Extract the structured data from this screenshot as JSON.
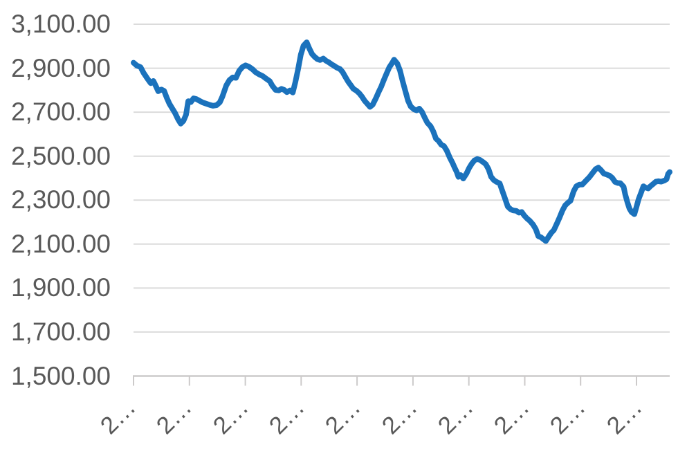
{
  "chart_data": {
    "type": "line",
    "title": "",
    "legend": false,
    "grid": true,
    "y_axis": {
      "range": [
        1500,
        3100
      ],
      "ticks": [
        1500,
        1700,
        1900,
        2100,
        2300,
        2500,
        2700,
        2900,
        3100
      ],
      "tick_labels": [
        "1,500.00",
        "1,700.00",
        "1,900.00",
        "2,100.00",
        "2,300.00",
        "2,500.00",
        "2,700.00",
        "2,900.00",
        "3,100.00"
      ]
    },
    "x_axis": {
      "tick_labels": [
        "2…",
        "2…",
        "2…",
        "2…",
        "2…",
        "2…",
        "2…",
        "2…",
        "2…",
        "2…"
      ],
      "labels_rotated_degrees": -45
    },
    "series": [
      {
        "name": "",
        "color": "#1B72BC",
        "points": [
          [
            0,
            2925
          ],
          [
            0.006,
            2912
          ],
          [
            0.013,
            2905
          ],
          [
            0.019,
            2878
          ],
          [
            0.026,
            2852
          ],
          [
            0.032,
            2832
          ],
          [
            0.037,
            2842
          ],
          [
            0.043,
            2812
          ],
          [
            0.046,
            2795
          ],
          [
            0.052,
            2803
          ],
          [
            0.057,
            2797
          ],
          [
            0.062,
            2765
          ],
          [
            0.067,
            2738
          ],
          [
            0.072,
            2718
          ],
          [
            0.077,
            2698
          ],
          [
            0.083,
            2668
          ],
          [
            0.088,
            2648
          ],
          [
            0.093,
            2660
          ],
          [
            0.098,
            2688
          ],
          [
            0.102,
            2750
          ],
          [
            0.107,
            2746
          ],
          [
            0.112,
            2763
          ],
          [
            0.117,
            2760
          ],
          [
            0.123,
            2752
          ],
          [
            0.129,
            2744
          ],
          [
            0.135,
            2739
          ],
          [
            0.142,
            2733
          ],
          [
            0.148,
            2729
          ],
          [
            0.155,
            2732
          ],
          [
            0.161,
            2745
          ],
          [
            0.166,
            2772
          ],
          [
            0.173,
            2822
          ],
          [
            0.179,
            2846
          ],
          [
            0.185,
            2858
          ],
          [
            0.191,
            2856
          ],
          [
            0.197,
            2888
          ],
          [
            0.203,
            2905
          ],
          [
            0.209,
            2913
          ],
          [
            0.215,
            2907
          ],
          [
            0.222,
            2895
          ],
          [
            0.228,
            2881
          ],
          [
            0.235,
            2871
          ],
          [
            0.241,
            2864
          ],
          [
            0.248,
            2851
          ],
          [
            0.254,
            2841
          ],
          [
            0.259,
            2820
          ],
          [
            0.265,
            2801
          ],
          [
            0.271,
            2799
          ],
          [
            0.276,
            2806
          ],
          [
            0.281,
            2801
          ],
          [
            0.286,
            2791
          ],
          [
            0.292,
            2799
          ],
          [
            0.297,
            2789
          ],
          [
            0.302,
            2838
          ],
          [
            0.307,
            2896
          ],
          [
            0.312,
            2962
          ],
          [
            0.317,
            3002
          ],
          [
            0.323,
            3018
          ],
          [
            0.328,
            2989
          ],
          [
            0.333,
            2964
          ],
          [
            0.338,
            2951
          ],
          [
            0.343,
            2941
          ],
          [
            0.348,
            2937
          ],
          [
            0.354,
            2944
          ],
          [
            0.359,
            2934
          ],
          [
            0.364,
            2927
          ],
          [
            0.369,
            2918
          ],
          [
            0.374,
            2911
          ],
          [
            0.379,
            2903
          ],
          [
            0.385,
            2896
          ],
          [
            0.39,
            2882
          ],
          [
            0.395,
            2861
          ],
          [
            0.4,
            2840
          ],
          [
            0.405,
            2823
          ],
          [
            0.41,
            2806
          ],
          [
            0.416,
            2797
          ],
          [
            0.421,
            2786
          ],
          [
            0.426,
            2771
          ],
          [
            0.431,
            2752
          ],
          [
            0.436,
            2738
          ],
          [
            0.441,
            2724
          ],
          [
            0.446,
            2734
          ],
          [
            0.452,
            2763
          ],
          [
            0.457,
            2791
          ],
          [
            0.462,
            2816
          ],
          [
            0.467,
            2847
          ],
          [
            0.472,
            2876
          ],
          [
            0.477,
            2904
          ],
          [
            0.483,
            2926
          ],
          [
            0.486,
            2939
          ],
          [
            0.492,
            2921
          ],
          [
            0.497,
            2889
          ],
          [
            0.502,
            2841
          ],
          [
            0.507,
            2796
          ],
          [
            0.512,
            2752
          ],
          [
            0.517,
            2726
          ],
          [
            0.523,
            2713
          ],
          [
            0.528,
            2708
          ],
          [
            0.533,
            2716
          ],
          [
            0.538,
            2701
          ],
          [
            0.543,
            2676
          ],
          [
            0.548,
            2652
          ],
          [
            0.554,
            2636
          ],
          [
            0.559,
            2613
          ],
          [
            0.564,
            2580
          ],
          [
            0.569,
            2569
          ],
          [
            0.574,
            2552
          ],
          [
            0.579,
            2546
          ],
          [
            0.584,
            2526
          ],
          [
            0.59,
            2492
          ],
          [
            0.595,
            2469
          ],
          [
            0.599,
            2447
          ],
          [
            0.603,
            2427
          ],
          [
            0.606,
            2406
          ],
          [
            0.61,
            2414
          ],
          [
            0.615,
            2398
          ],
          [
            0.621,
            2421
          ],
          [
            0.626,
            2446
          ],
          [
            0.631,
            2466
          ],
          [
            0.636,
            2481
          ],
          [
            0.641,
            2487
          ],
          [
            0.646,
            2483
          ],
          [
            0.652,
            2473
          ],
          [
            0.657,
            2463
          ],
          [
            0.662,
            2441
          ],
          [
            0.667,
            2406
          ],
          [
            0.672,
            2391
          ],
          [
            0.677,
            2383
          ],
          [
            0.683,
            2376
          ],
          [
            0.688,
            2341
          ],
          [
            0.693,
            2306
          ],
          [
            0.698,
            2271
          ],
          [
            0.703,
            2259
          ],
          [
            0.708,
            2253
          ],
          [
            0.714,
            2251
          ],
          [
            0.719,
            2243
          ],
          [
            0.724,
            2246
          ],
          [
            0.729,
            2229
          ],
          [
            0.734,
            2216
          ],
          [
            0.739,
            2206
          ],
          [
            0.745,
            2189
          ],
          [
            0.75,
            2169
          ],
          [
            0.755,
            2136
          ],
          [
            0.76,
            2131
          ],
          [
            0.765,
            2121
          ],
          [
            0.769,
            2114
          ],
          [
            0.774,
            2133
          ],
          [
            0.779,
            2151
          ],
          [
            0.784,
            2164
          ],
          [
            0.79,
            2196
          ],
          [
            0.795,
            2223
          ],
          [
            0.8,
            2253
          ],
          [
            0.805,
            2276
          ],
          [
            0.81,
            2288
          ],
          [
            0.815,
            2297
          ],
          [
            0.821,
            2341
          ],
          [
            0.826,
            2363
          ],
          [
            0.832,
            2371
          ],
          [
            0.837,
            2371
          ],
          [
            0.844,
            2389
          ],
          [
            0.85,
            2404
          ],
          [
            0.857,
            2426
          ],
          [
            0.862,
            2441
          ],
          [
            0.867,
            2448
          ],
          [
            0.872,
            2436
          ],
          [
            0.877,
            2421
          ],
          [
            0.883,
            2416
          ],
          [
            0.888,
            2411
          ],
          [
            0.893,
            2401
          ],
          [
            0.898,
            2383
          ],
          [
            0.903,
            2378
          ],
          [
            0.908,
            2377
          ],
          [
            0.914,
            2361
          ],
          [
            0.917,
            2326
          ],
          [
            0.921,
            2291
          ],
          [
            0.925,
            2261
          ],
          [
            0.929,
            2245
          ],
          [
            0.934,
            2236
          ],
          [
            0.938,
            2268
          ],
          [
            0.942,
            2304
          ],
          [
            0.947,
            2336
          ],
          [
            0.951,
            2363
          ],
          [
            0.955,
            2357
          ],
          [
            0.96,
            2353
          ],
          [
            0.964,
            2363
          ],
          [
            0.969,
            2373
          ],
          [
            0.974,
            2384
          ],
          [
            0.979,
            2386
          ],
          [
            0.984,
            2384
          ],
          [
            0.99,
            2389
          ],
          [
            0.994,
            2395
          ],
          [
            0.997,
            2419
          ],
          [
            1,
            2428
          ]
        ]
      }
    ],
    "colors": {
      "line": "#1B72BC",
      "gridline": "#DBDBDB",
      "axis": "#CCCACA",
      "label": "#595959",
      "background": "#FFFFFF"
    }
  }
}
